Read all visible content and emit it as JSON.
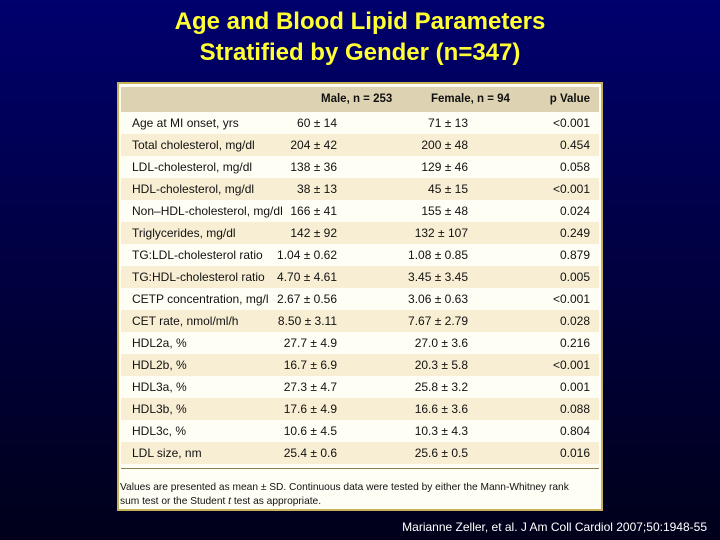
{
  "title": {
    "line1": "Age and Blood Lipid Parameters",
    "line2": "Stratified by Gender (n=347)"
  },
  "table": {
    "headers": {
      "male": "Male, n = 253",
      "female": "Female, n = 94",
      "p": "p Value"
    },
    "rows": [
      {
        "label": "Age at MI onset, yrs",
        "male": "60 ± 14",
        "female": "71 ± 13",
        "p": "<0.001"
      },
      {
        "label": "Total cholesterol, mg/dl",
        "male": "204 ± 42",
        "female": "200 ± 48",
        "p": "0.454"
      },
      {
        "label": "LDL-cholesterol, mg/dl",
        "male": "138 ± 36",
        "female": "129 ± 46",
        "p": "0.058"
      },
      {
        "label": "HDL-cholesterol, mg/dl",
        "male": "38 ± 13",
        "female": "45 ± 15",
        "p": "<0.001"
      },
      {
        "label": "Non–HDL-cholesterol, mg/dl",
        "male": "166 ± 41",
        "female": "155 ± 48",
        "p": "0.024"
      },
      {
        "label": "Triglycerides, mg/dl",
        "male": "142 ± 92",
        "female": "132 ± 107",
        "p": "0.249"
      },
      {
        "label": "TG:LDL-cholesterol ratio",
        "male": "1.04 ± 0.62",
        "female": "1.08 ± 0.85",
        "p": "0.879"
      },
      {
        "label": "TG:HDL-cholesterol ratio",
        "male": "4.70 ± 4.61",
        "female": "3.45 ± 3.45",
        "p": "0.005"
      },
      {
        "label": "CETP concentration, mg/l",
        "male": "2.67 ± 0.56",
        "female": "3.06 ± 0.63",
        "p": "<0.001"
      },
      {
        "label": "CET rate, nmol/ml/h",
        "male": "8.50 ± 3.11",
        "female": "7.67 ± 2.79",
        "p": "0.028"
      },
      {
        "label": "HDL2a, %",
        "male": "27.7 ± 4.9",
        "female": "27.0 ± 3.6",
        "p": "0.216"
      },
      {
        "label": "HDL2b, %",
        "male": "16.7 ± 6.9",
        "female": "20.3 ± 5.8",
        "p": "<0.001"
      },
      {
        "label": "HDL3a, %",
        "male": "27.3 ± 4.7",
        "female": "25.8 ± 3.2",
        "p": "0.001"
      },
      {
        "label": "HDL3b, %",
        "male": "17.6 ± 4.9",
        "female": "16.6 ± 3.6",
        "p": "0.088"
      },
      {
        "label": "HDL3c, %",
        "male": "10.6 ± 4.5",
        "female": "10.3 ± 4.3",
        "p": "0.804"
      },
      {
        "label": "LDL size, nm",
        "male": "25.4 ± 0.6",
        "female": "25.6 ± 0.5",
        "p": "0.016"
      }
    ],
    "footnote": {
      "line1": "Values are presented as mean ± SD. Continuous data were tested by either the Mann-Whitney rank",
      "line2_pre": "sum test or the Student ",
      "line2_italic": "t",
      "line2_post": " test as appropriate."
    }
  },
  "citation": "Marianne Zeller, et al. J Am Coll Cardiol 2007;50:1948-55"
}
